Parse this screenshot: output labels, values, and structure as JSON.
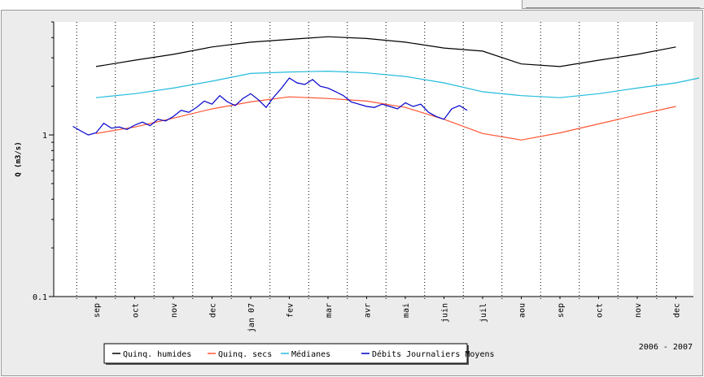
{
  "chart_data": {
    "type": "line",
    "ylabel": "Q (m3/s)",
    "yscale": "log",
    "ylim": [
      0.1,
      5
    ],
    "yticks": [
      {
        "value": 1,
        "label": "1"
      },
      {
        "value": 0.1,
        "label": "0.1"
      }
    ],
    "xticks": [
      "sep",
      "oct",
      "nov",
      "dec",
      "jan 07",
      "fev",
      "mar",
      "avr",
      "mai",
      "juin",
      "juil",
      "aou",
      "sep",
      "oct",
      "nov",
      "dec"
    ],
    "period_label": "2006 - 2007",
    "grid": "vertical dotted lines at month boundaries",
    "legend_position": "bottom",
    "colors": {
      "humides": "#000000",
      "secs": "#ff5533",
      "medianes": "#22bbdd",
      "journaliers": "#0000cc",
      "background": "#ececec",
      "plot": "#ffffff"
    },
    "series": [
      {
        "name": "Quinq. humides",
        "color": "#000000",
        "x": [
          0,
          1,
          2,
          3,
          4,
          5,
          6,
          7,
          8,
          9,
          10,
          11,
          12,
          13,
          14,
          15
        ],
        "y": [
          2.65,
          2.9,
          3.15,
          3.5,
          3.75,
          3.9,
          4.05,
          3.95,
          3.75,
          3.45,
          3.3,
          2.75,
          2.65,
          2.9,
          3.15,
          3.5
        ]
      },
      {
        "name": "Quinq. secs",
        "color": "#ff5533",
        "x": [
          0,
          1,
          2,
          3,
          4,
          5,
          6,
          7,
          8,
          9,
          10,
          11,
          12,
          13,
          14,
          15
        ],
        "y": [
          1.02,
          1.12,
          1.27,
          1.45,
          1.6,
          1.72,
          1.68,
          1.62,
          1.48,
          1.25,
          1.02,
          0.93,
          1.03,
          1.17,
          1.33,
          1.5
        ]
      },
      {
        "name": "Médianes",
        "color": "#22bbdd",
        "x": [
          0,
          1,
          2,
          3,
          4,
          5,
          6,
          7,
          8,
          9,
          10,
          11,
          12,
          13,
          14,
          15,
          15.6
        ],
        "y": [
          1.7,
          1.8,
          1.95,
          2.15,
          2.4,
          2.45,
          2.48,
          2.42,
          2.3,
          2.1,
          1.85,
          1.75,
          1.7,
          1.8,
          1.95,
          2.1,
          2.25
        ]
      },
      {
        "name": "Débits Journaliers Moyens",
        "color": "#0000cc",
        "x": [
          -0.6,
          -0.4,
          -0.2,
          0,
          0.2,
          0.4,
          0.6,
          0.8,
          1,
          1.2,
          1.4,
          1.6,
          1.8,
          2,
          2.2,
          2.4,
          2.6,
          2.8,
          3,
          3.2,
          3.4,
          3.6,
          3.8,
          4,
          4.2,
          4.4,
          4.6,
          4.8,
          5,
          5.2,
          5.4,
          5.6,
          5.8,
          6,
          6.2,
          6.4,
          6.6,
          6.8,
          7,
          7.2,
          7.4,
          7.6,
          7.8,
          8,
          8.2,
          8.4,
          8.6,
          8.8,
          9,
          9.2,
          9.4,
          9.6
        ],
        "y": [
          1.13,
          1.06,
          1.0,
          1.03,
          1.18,
          1.1,
          1.12,
          1.08,
          1.15,
          1.2,
          1.14,
          1.25,
          1.22,
          1.3,
          1.42,
          1.38,
          1.48,
          1.62,
          1.55,
          1.75,
          1.6,
          1.52,
          1.68,
          1.8,
          1.65,
          1.48,
          1.72,
          1.95,
          2.25,
          2.1,
          2.05,
          2.2,
          2.0,
          1.95,
          1.85,
          1.75,
          1.6,
          1.55,
          1.5,
          1.48,
          1.55,
          1.5,
          1.45,
          1.58,
          1.5,
          1.55,
          1.38,
          1.3,
          1.25,
          1.45,
          1.52,
          1.42
        ]
      }
    ]
  }
}
